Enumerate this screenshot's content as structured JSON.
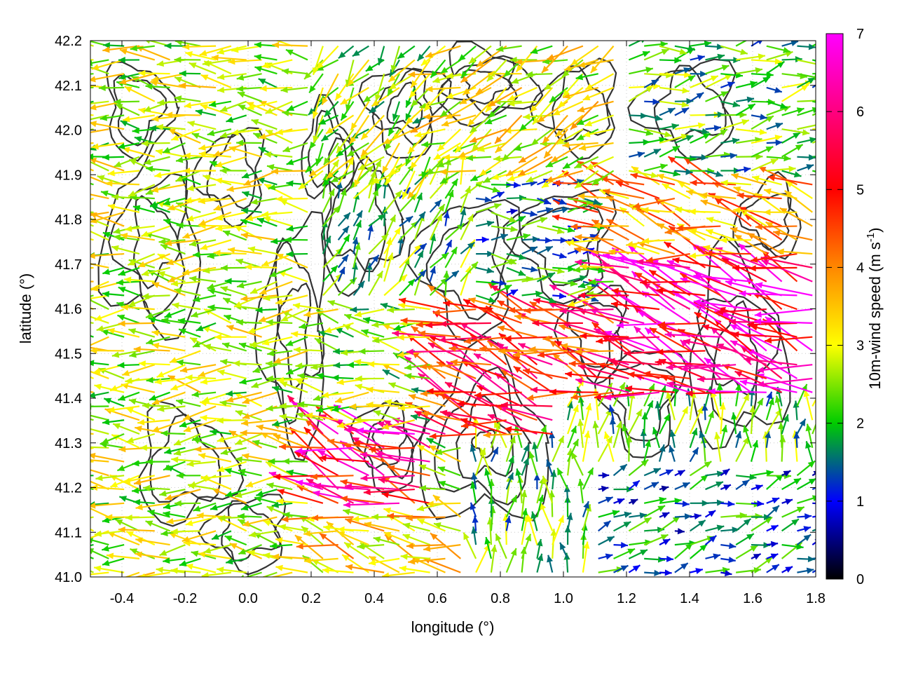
{
  "chart_data": {
    "type": "vector-field",
    "title": "",
    "xlabel": "longitude (°)",
    "ylabel": "latitude (°)",
    "xlim": [
      -0.5,
      1.8
    ],
    "ylim": [
      41.0,
      42.2
    ],
    "xticks": [
      "-0.4",
      "-0.2",
      "0.0",
      "0.2",
      "0.4",
      "0.6",
      "0.8",
      "1.0",
      "1.2",
      "1.4",
      "1.6",
      "1.8"
    ],
    "xtick_values": [
      -0.4,
      -0.2,
      0.0,
      0.2,
      0.4,
      0.6,
      0.8,
      1.0,
      1.2,
      1.4,
      1.6,
      1.8
    ],
    "yticks": [
      "41.0",
      "41.1",
      "41.2",
      "41.3",
      "41.4",
      "41.5",
      "41.6",
      "41.7",
      "41.8",
      "41.9",
      "42.0",
      "42.1",
      "42.2"
    ],
    "ytick_values": [
      41.0,
      41.1,
      41.2,
      41.3,
      41.4,
      41.5,
      41.6,
      41.7,
      41.8,
      41.9,
      42.0,
      42.1,
      42.2
    ],
    "grid": true,
    "colorbar": {
      "label_main": "10m-wind speed (m s",
      "label_sup": "-1",
      "label_close": ")",
      "range": [
        0,
        7
      ],
      "ticks": [
        "0",
        "1",
        "2",
        "3",
        "4",
        "5",
        "6",
        "7"
      ],
      "tick_values": [
        0,
        1,
        2,
        3,
        4,
        5,
        6,
        7
      ],
      "colors": [
        "#000000",
        "#0000ff",
        "#00cc00",
        "#ffff00",
        "#ff8800",
        "#ff0000",
        "#ff00ff"
      ]
    },
    "wind_regions": [
      {
        "lon": [
          -0.5,
          0.2
        ],
        "lat": [
          41.0,
          42.2
        ],
        "u": -3.2,
        "v": 0.1,
        "speed": 3.2
      },
      {
        "lon": [
          0.2,
          0.7
        ],
        "lat": [
          41.9,
          42.2
        ],
        "u": -1.5,
        "v": -1.8,
        "speed": 3.0
      },
      {
        "lon": [
          0.6,
          1.2
        ],
        "lat": [
          41.9,
          42.2
        ],
        "u": -2.5,
        "v": -1.2,
        "speed": 3.5
      },
      {
        "lon": [
          1.2,
          1.8
        ],
        "lat": [
          41.9,
          42.2
        ],
        "u": 2.0,
        "v": 0.3,
        "speed": 2.5
      },
      {
        "lon": [
          0.2,
          0.7
        ],
        "lat": [
          41.6,
          41.9
        ],
        "u": 0.8,
        "v": 1.5,
        "speed": 2.5
      },
      {
        "lon": [
          0.7,
          1.1
        ],
        "lat": [
          41.6,
          41.9
        ],
        "u": 2.5,
        "v": 0.1,
        "speed": 2.0
      },
      {
        "lon": [
          1.1,
          1.8
        ],
        "lat": [
          41.7,
          41.9
        ],
        "u": -4.0,
        "v": 1.0,
        "speed": 4.5
      },
      {
        "lon": [
          0.6,
          1.2
        ],
        "lat": [
          41.3,
          41.6
        ],
        "u": -4.0,
        "v": 1.2,
        "speed": 5.5
      },
      {
        "lon": [
          1.2,
          1.8
        ],
        "lat": [
          41.4,
          41.7
        ],
        "u": -5.5,
        "v": 1.8,
        "speed": 6.5
      },
      {
        "lon": [
          0.2,
          0.6
        ],
        "lat": [
          41.15,
          41.35
        ],
        "u": -5.0,
        "v": 2.0,
        "speed": 6.0
      },
      {
        "lon": [
          0.2,
          0.7
        ],
        "lat": [
          41.0,
          41.15
        ],
        "u": -3.0,
        "v": 0.8,
        "speed": 4.0
      },
      {
        "lon": [
          0.7,
          1.1
        ],
        "lat": [
          41.0,
          41.3
        ],
        "u": 0.0,
        "v": 2.5,
        "speed": 2.5
      },
      {
        "lon": [
          1.1,
          1.8
        ],
        "lat": [
          41.0,
          41.3
        ],
        "u": 2.0,
        "v": 0.6,
        "speed": 1.8
      },
      {
        "lon": [
          1.0,
          1.8
        ],
        "lat": [
          41.25,
          41.4
        ],
        "u": 0.3,
        "v": 2.2,
        "speed": 2.5
      }
    ]
  }
}
